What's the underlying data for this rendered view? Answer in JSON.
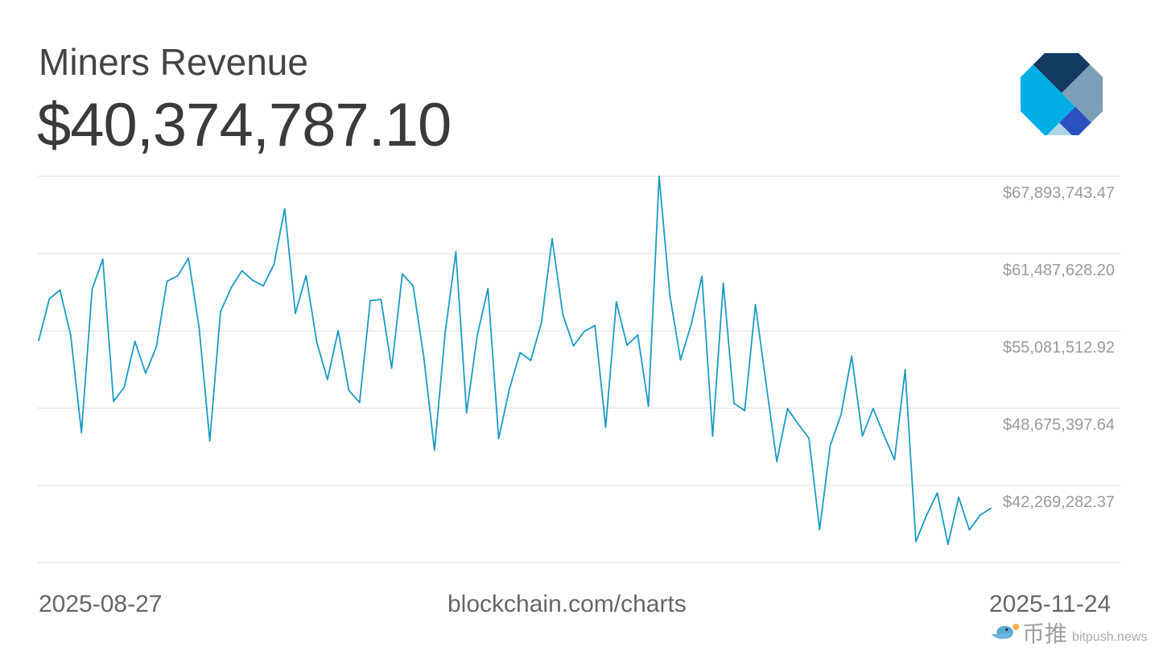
{
  "header": {
    "title": "Miners Revenue",
    "current_value": "$40,374,787.10"
  },
  "footer": {
    "start_date": "2025-08-27",
    "source": "blockchain.com/charts",
    "end_date": "2025-11-24"
  },
  "watermark": {
    "cn": "币推",
    "en": "bitpush.news"
  },
  "logo": {
    "colors": [
      "#123a63",
      "#7b9fb6",
      "#2b50c0",
      "#00aee6",
      "#acd5e9"
    ]
  },
  "chart_data": {
    "type": "line",
    "title": "Miners Revenue",
    "x_start": "2025-08-27",
    "x_end": "2025-11-24",
    "x_interval": "daily",
    "ylim": [
      35863167.1,
      67893743.47
    ],
    "y_ticks": [
      42269282.37,
      48675397.64,
      55081512.92,
      61487628.2,
      67893743.47
    ],
    "y_tick_labels": [
      "$42,269,282.37",
      "$48,675,397.64",
      "$55,081,512.92",
      "$61,487,628.20",
      "$67,893,743.47"
    ],
    "y_axis_position": "right",
    "grid": true,
    "line_color": "#1a9bc4",
    "values": [
      54.26,
      57.73,
      58.46,
      54.7,
      46.65,
      58.53,
      61.02,
      49.23,
      50.41,
      54.21,
      51.56,
      53.74,
      59.19,
      59.64,
      61.1,
      55.36,
      45.96,
      56.66,
      58.66,
      60.06,
      59.28,
      58.81,
      60.6,
      65.2,
      56.53,
      59.66,
      54.14,
      51.05,
      55.1,
      50.14,
      49.14,
      57.59,
      57.68,
      51.99,
      59.8,
      58.81,
      52.92,
      45.18,
      54.92,
      61.64,
      48.29,
      54.7,
      58.59,
      46.14,
      50.25,
      53.28,
      52.63,
      55.77,
      62.71,
      56.41,
      53.83,
      55.03,
      55.52,
      47.09,
      57.48,
      53.88,
      54.74,
      48.83,
      67.89,
      58.03,
      52.68,
      55.61,
      59.6,
      46.36,
      59.03,
      49.07,
      48.47,
      57.26,
      50.69,
      44.25,
      48.63,
      47.36,
      46.18,
      38.62,
      45.58,
      48.14,
      52.99,
      46.36,
      48.63,
      46.47,
      44.4,
      51.85,
      37.61,
      39.8,
      41.64,
      37.39,
      41.28,
      38.58,
      39.8,
      40.37
    ],
    "values_unit": "millions USD"
  }
}
